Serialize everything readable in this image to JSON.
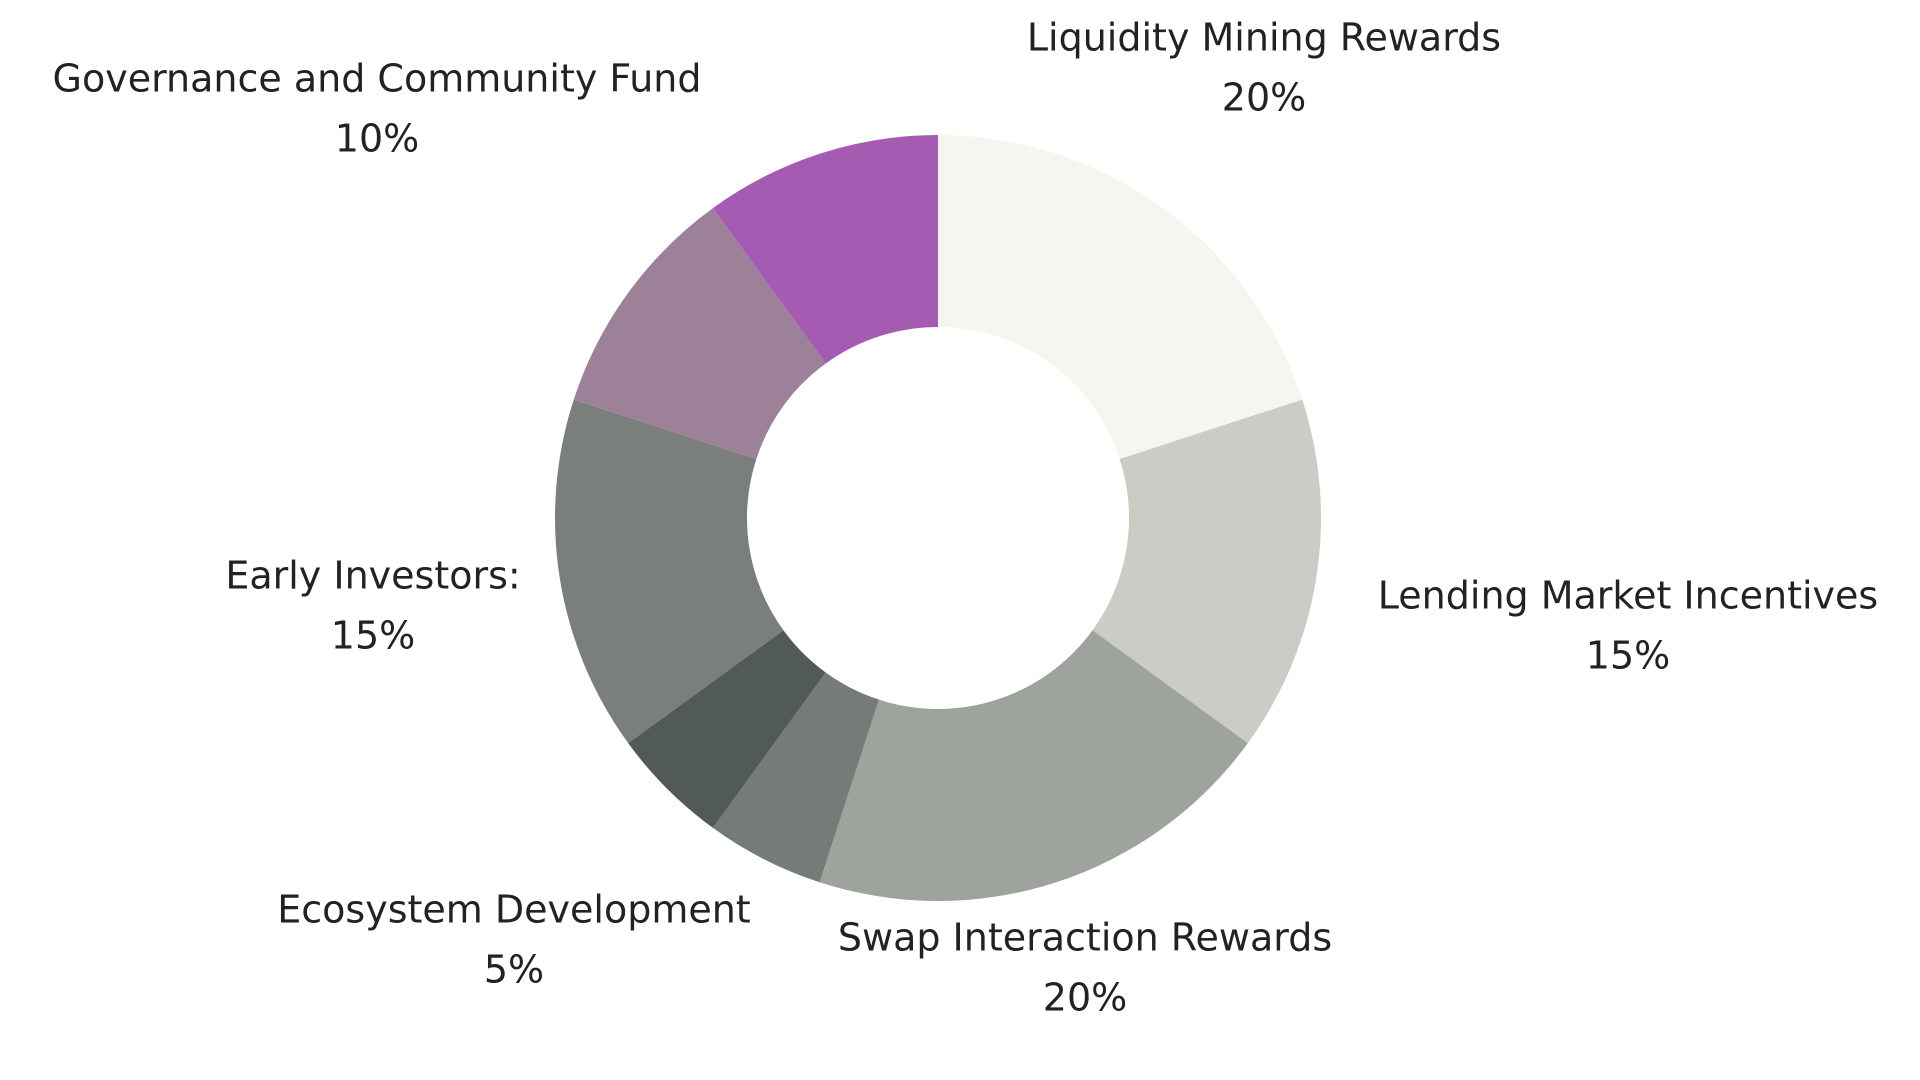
{
  "chart_data": {
    "type": "donut",
    "categories": [
      "Liquidity Mining Rewards",
      "Lending Market Incentives",
      "Swap Interaction Rewards",
      null,
      "Ecosystem Development",
      "Early Investors:",
      null,
      "Governance and Community Fund"
    ],
    "values": [
      20,
      15,
      20,
      5,
      5,
      15,
      10,
      10
    ],
    "value_labels": [
      "20%",
      "15%",
      "20%",
      null,
      "5%",
      "15%",
      null,
      "10%"
    ],
    "colors": [
      "#f7f5f0",
      "#cbccc6",
      "#9fa39d",
      "#757c77",
      "#525a57",
      "#7a7f7d",
      "#9c8199",
      "#a65bb3"
    ]
  }
}
